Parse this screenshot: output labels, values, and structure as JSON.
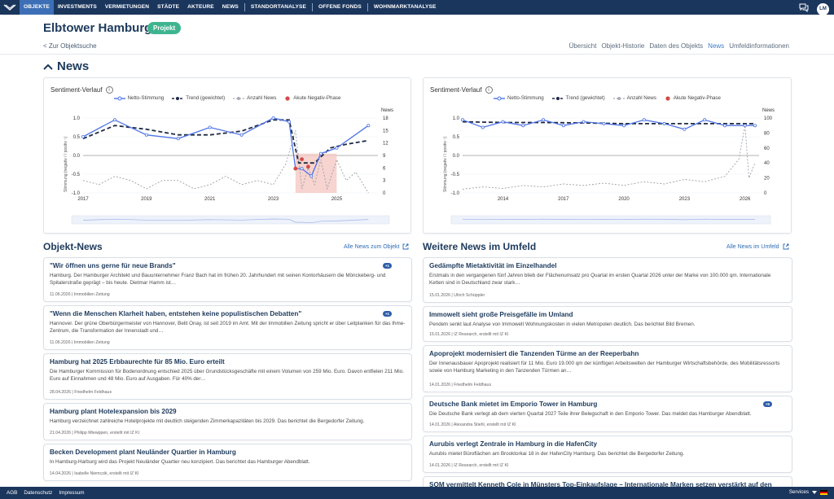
{
  "nav": {
    "items": [
      "OBJEKTE",
      "INVESTMENTS",
      "VERMIETUNGEN",
      "STÄDTE",
      "AKTEURE",
      "NEWS"
    ],
    "items2": [
      "STANDORTANALYSE",
      "OFFENE FONDS",
      "WOHNMARKTANALYSE"
    ],
    "avatar": "LM"
  },
  "header": {
    "title": "Elbtower Hamburg",
    "badge": "Projekt",
    "back": "< Zur Objektsuche",
    "tabs": [
      "Übersicht",
      "Objekt-Historie",
      "Daten des Objekts",
      "News",
      "Umfeldinformationen"
    ]
  },
  "news_title": "News",
  "colors": {
    "navy": "#1b365d",
    "blue": "#3d6fb6",
    "green": "#3fb58f",
    "line": "#4f74e8",
    "neg": "#f5c9c3",
    "negdot": "#d24b48"
  },
  "charts": [
    {
      "title": "Sentiment-Verlauf",
      "legend": [
        "Netto-Stimmung",
        "Trend (gewichtet)",
        "Anzahl News",
        "Akute Negativ-Phase"
      ],
      "right_axis_label": "News",
      "left_axis_label": "Stimmung (negativ / / positiv ↑)"
    },
    {
      "title": "Sentiment-Verlauf",
      "legend": [
        "Netto-Stimmung",
        "Trend (gewichtet)",
        "Anzahl News",
        "Akute Negativ-Phase"
      ],
      "right_axis_label": "News",
      "left_axis_label": "Stimmung (negativ / / positiv ↑)"
    }
  ],
  "chart_data": [
    {
      "type": "line",
      "x_ticks": [
        "2017",
        "2019",
        "2021",
        "2023",
        "2025"
      ],
      "y_left_ticks": [
        "1.0",
        "0.5",
        "0.0",
        "-0.5",
        "-1.0"
      ],
      "y_right_ticks": [
        "18",
        "15",
        "12",
        "9",
        "6",
        "3",
        "0"
      ],
      "ylim": [
        -1.0,
        1.0
      ],
      "y2lim": [
        0,
        18
      ],
      "series": [
        {
          "name": "Netto-Stimmung",
          "x": [
            2017,
            2018,
            2019,
            2020,
            2021,
            2022,
            2023,
            2023.5,
            2023.7,
            2023.9,
            2024.2,
            2024.5,
            2025,
            2026
          ],
          "values": [
            0.5,
            0.95,
            0.55,
            0.45,
            0.75,
            0.55,
            1.0,
            0.9,
            -0.35,
            -0.35,
            -0.55,
            0.05,
            0.2,
            0.8
          ]
        },
        {
          "name": "Trend (gewichtet)",
          "x": [
            2017,
            2018,
            2019,
            2020,
            2021,
            2022,
            2023,
            2023.5,
            2023.8,
            2024.3,
            2024.8,
            2025.3,
            2026
          ],
          "values": [
            0.45,
            0.8,
            0.7,
            0.55,
            0.55,
            0.65,
            0.95,
            0.95,
            -0.2,
            -0.2,
            0.2,
            0.3,
            0.4
          ]
        },
        {
          "name": "Anzahl News",
          "x": [
            2017,
            2017.5,
            2018,
            2018.5,
            2019,
            2019.5,
            2020,
            2020.5,
            2021,
            2021.5,
            2022,
            2022.5,
            2023,
            2023.4,
            2023.7,
            2023.9,
            2024.1,
            2024.3,
            2024.5,
            2024.7,
            2025,
            2025.3,
            2025.6,
            2026
          ],
          "values": [
            3,
            2,
            4,
            3,
            1,
            3,
            3,
            1,
            2,
            4,
            2,
            3,
            2,
            7,
            15,
            1,
            6,
            2,
            8,
            1,
            8,
            3,
            5,
            0
          ]
        }
      ],
      "negative_phase": [
        2023.7,
        2025
      ],
      "negative_points": [
        [
          2023.7,
          -0.35
        ],
        [
          2023.9,
          -0.1
        ],
        [
          2024.1,
          -0.3
        ]
      ]
    },
    {
      "type": "line",
      "x_ticks": [
        "2014",
        "2017",
        "2020",
        "2023",
        "2026"
      ],
      "y_left_ticks": [
        "1.0",
        "0.5",
        "0.0",
        "-0.5",
        "-1.0"
      ],
      "y_right_ticks": [
        "100",
        "80",
        "60",
        "40",
        "20",
        "0"
      ],
      "ylim": [
        -1.0,
        1.0
      ],
      "y2lim": [
        0,
        100
      ],
      "series": [
        {
          "name": "Netto-Stimmung",
          "x": [
            2012,
            2013,
            2014,
            2015,
            2016,
            2017,
            2018,
            2019,
            2020,
            2021,
            2022,
            2023,
            2024,
            2025,
            2026,
            2026.5
          ],
          "values": [
            0.95,
            0.75,
            0.9,
            0.8,
            0.95,
            0.8,
            0.9,
            0.85,
            0.8,
            0.95,
            0.85,
            0.7,
            0.95,
            0.8,
            0.8,
            0.8
          ]
        },
        {
          "name": "Trend (gewichtet)",
          "x": [
            2012,
            2014,
            2016,
            2018,
            2020,
            2022,
            2024,
            2026,
            2026.5
          ],
          "values": [
            0.9,
            0.88,
            0.88,
            0.87,
            0.85,
            0.85,
            0.85,
            0.85,
            0.85
          ]
        },
        {
          "name": "Anzahl News",
          "x": [
            2012,
            2013,
            2014,
            2015,
            2016,
            2017,
            2018,
            2019,
            2020,
            2021,
            2022,
            2023,
            2024,
            2025,
            2025.7,
            2026,
            2026.2,
            2026.5
          ],
          "values": [
            5,
            8,
            6,
            10,
            8,
            12,
            10,
            13,
            10,
            15,
            12,
            18,
            15,
            22,
            45,
            90,
            20,
            40
          ]
        }
      ]
    }
  ],
  "objekt_news": {
    "title": "Objekt-News",
    "link": "Alle News zum Objekt",
    "items": [
      {
        "title": "\"Wir öffnen uns gerne für neue Brands\"",
        "body": "Hamburg. Der Hamburger Architekt und Bauunternehmer Franz Bach hat im frühen 20. Jahrhundert mit seinen Kontorhäusern die Mönckeberg- und Spitalerstraße geprägt – bis heute. Dietmar Hamm ist…",
        "meta": "11.06.2026 | Immobilien Zeitung",
        "pill": "+1"
      },
      {
        "title": "\"Wenn die Menschen Klarheit haben, entstehen keine populistischen Debatten\"",
        "body": "Hannover. Der grüne Oberbürgermeister von Hannover, Belit Onay, ist seit 2019 im Amt. Mit der Immobilien Zeitung spricht er über Leitplanken für das Ihme-Zentrum, die Transformation der Innenstadt und…",
        "meta": "11.06.2026 | Immobilien Zeitung",
        "pill": "+1"
      },
      {
        "title": "Hamburg hat 2025 Erbbaurechte für 85 Mio. Euro erteilt",
        "body": "Die Hamburger Kommission für Bodenordnung entschied 2025 über Grundstücksgeschäfte mit einem Volumen von 259 Mio. Euro. Davon entfielen 211 Mio. Euro auf Einnahmen und 48 Mio. Euro auf Ausgaben. Für 40% der…",
        "meta": "28.04.2026 | Friedhelm Feldhaus",
        "pill": ""
      },
      {
        "title": "Hamburg plant Hotelexpansion bis 2029",
        "body": "Hamburg verzeichnet zahlreiche Hotelprojekte mit deutlich steigenden Zimmerkapazitäten bis 2029. Das berichtet die Bergedorfer Zeitung.",
        "meta": "21.04.2026 | Philipp Mtewppen, erstellt mit IZ KI",
        "pill": ""
      },
      {
        "title": "Becken Development plant Neuländer Quartier in Hamburg",
        "body": "In Hamburg-Harburg wird das Projekt Neuländer Quartier neu konzipiert. Das berichtet das Hamburger Abendblatt.",
        "meta": "14.04.2026 | Isabelle Niemczik, erstellt mit IZ KI",
        "pill": ""
      }
    ]
  },
  "weitere_news": {
    "title": "Weitere News im Umfeld",
    "link": "Alle News im Umfeld",
    "items": [
      {
        "title": "Gedämpfte Mietaktivität im Einzelhandel",
        "body": "Erstmals in den vergangenen fünf Jahren blieb der Flächenumsatz pro Quartal im ersten Quartal 2026 unter der Marke von 100.000 qm. Internationale Ketten sind in Deutschland zwar stark…",
        "meta": "15.01.2026 | Ulrich Schüppler",
        "pill": ""
      },
      {
        "title": "Immowelt sieht große Preisgefälle im Umland",
        "body": "Pendeln senkt laut Analyse von Immowelt Wohnungskosten in vielen Metropolen deutlich. Das berichtet Bild Bremen.",
        "meta": "15.01.2026 | IZ Research, erstellt mit IZ KI",
        "pill": ""
      },
      {
        "title": "Apoprojekt modernisiert die Tanzenden Türme an der Reeperbahn",
        "body": "Der Innenausbauer Apoprojekt realisiert für 11 Mio. Euro 19.000 qm der künftigen Arbeitswelten der Hamburger Wirtschaftsbehörde, des Mobilitätsressorts sowie von Hamburg Marketing in den Tanzenden Türmen an…",
        "meta": "14.01.2026 | Friedhelm Feldhaus",
        "pill": ""
      },
      {
        "title": "Deutsche Bank mietet im Emporio Tower in Hamburg",
        "body": "Die Deutsche Bank verlegt ab dem vierten Quartal 2027 Teile ihrer Belegschaft in den Emporio Tower. Das meldet das Hamburger Abendblatt.",
        "meta": "14.01.2026 | Alexandra Stiehl, erstellt mit IZ KI",
        "pill": "+5"
      },
      {
        "title": "Aurubis verlegt Zentrale in Hamburg in die HafenCity",
        "body": "Aurubis mietet Büroflächen am Brooktorkai 18 in der HafenCity Hamburg. Das berichtet die Bergedorfer Zeitung.",
        "meta": "14.01.2026 | IZ Research, erstellt mit IZ KI",
        "pill": ""
      },
      {
        "title": "SOM vermittelt Kenneth Cole in Münsters Top-Einkaufslage – Internationale Marken setzen verstärkt auf den",
        "body": "",
        "meta": "",
        "pill": ""
      }
    ]
  },
  "footer": {
    "links": [
      "AGB",
      "Datenschutz",
      "Impressum"
    ],
    "services": "Services"
  }
}
